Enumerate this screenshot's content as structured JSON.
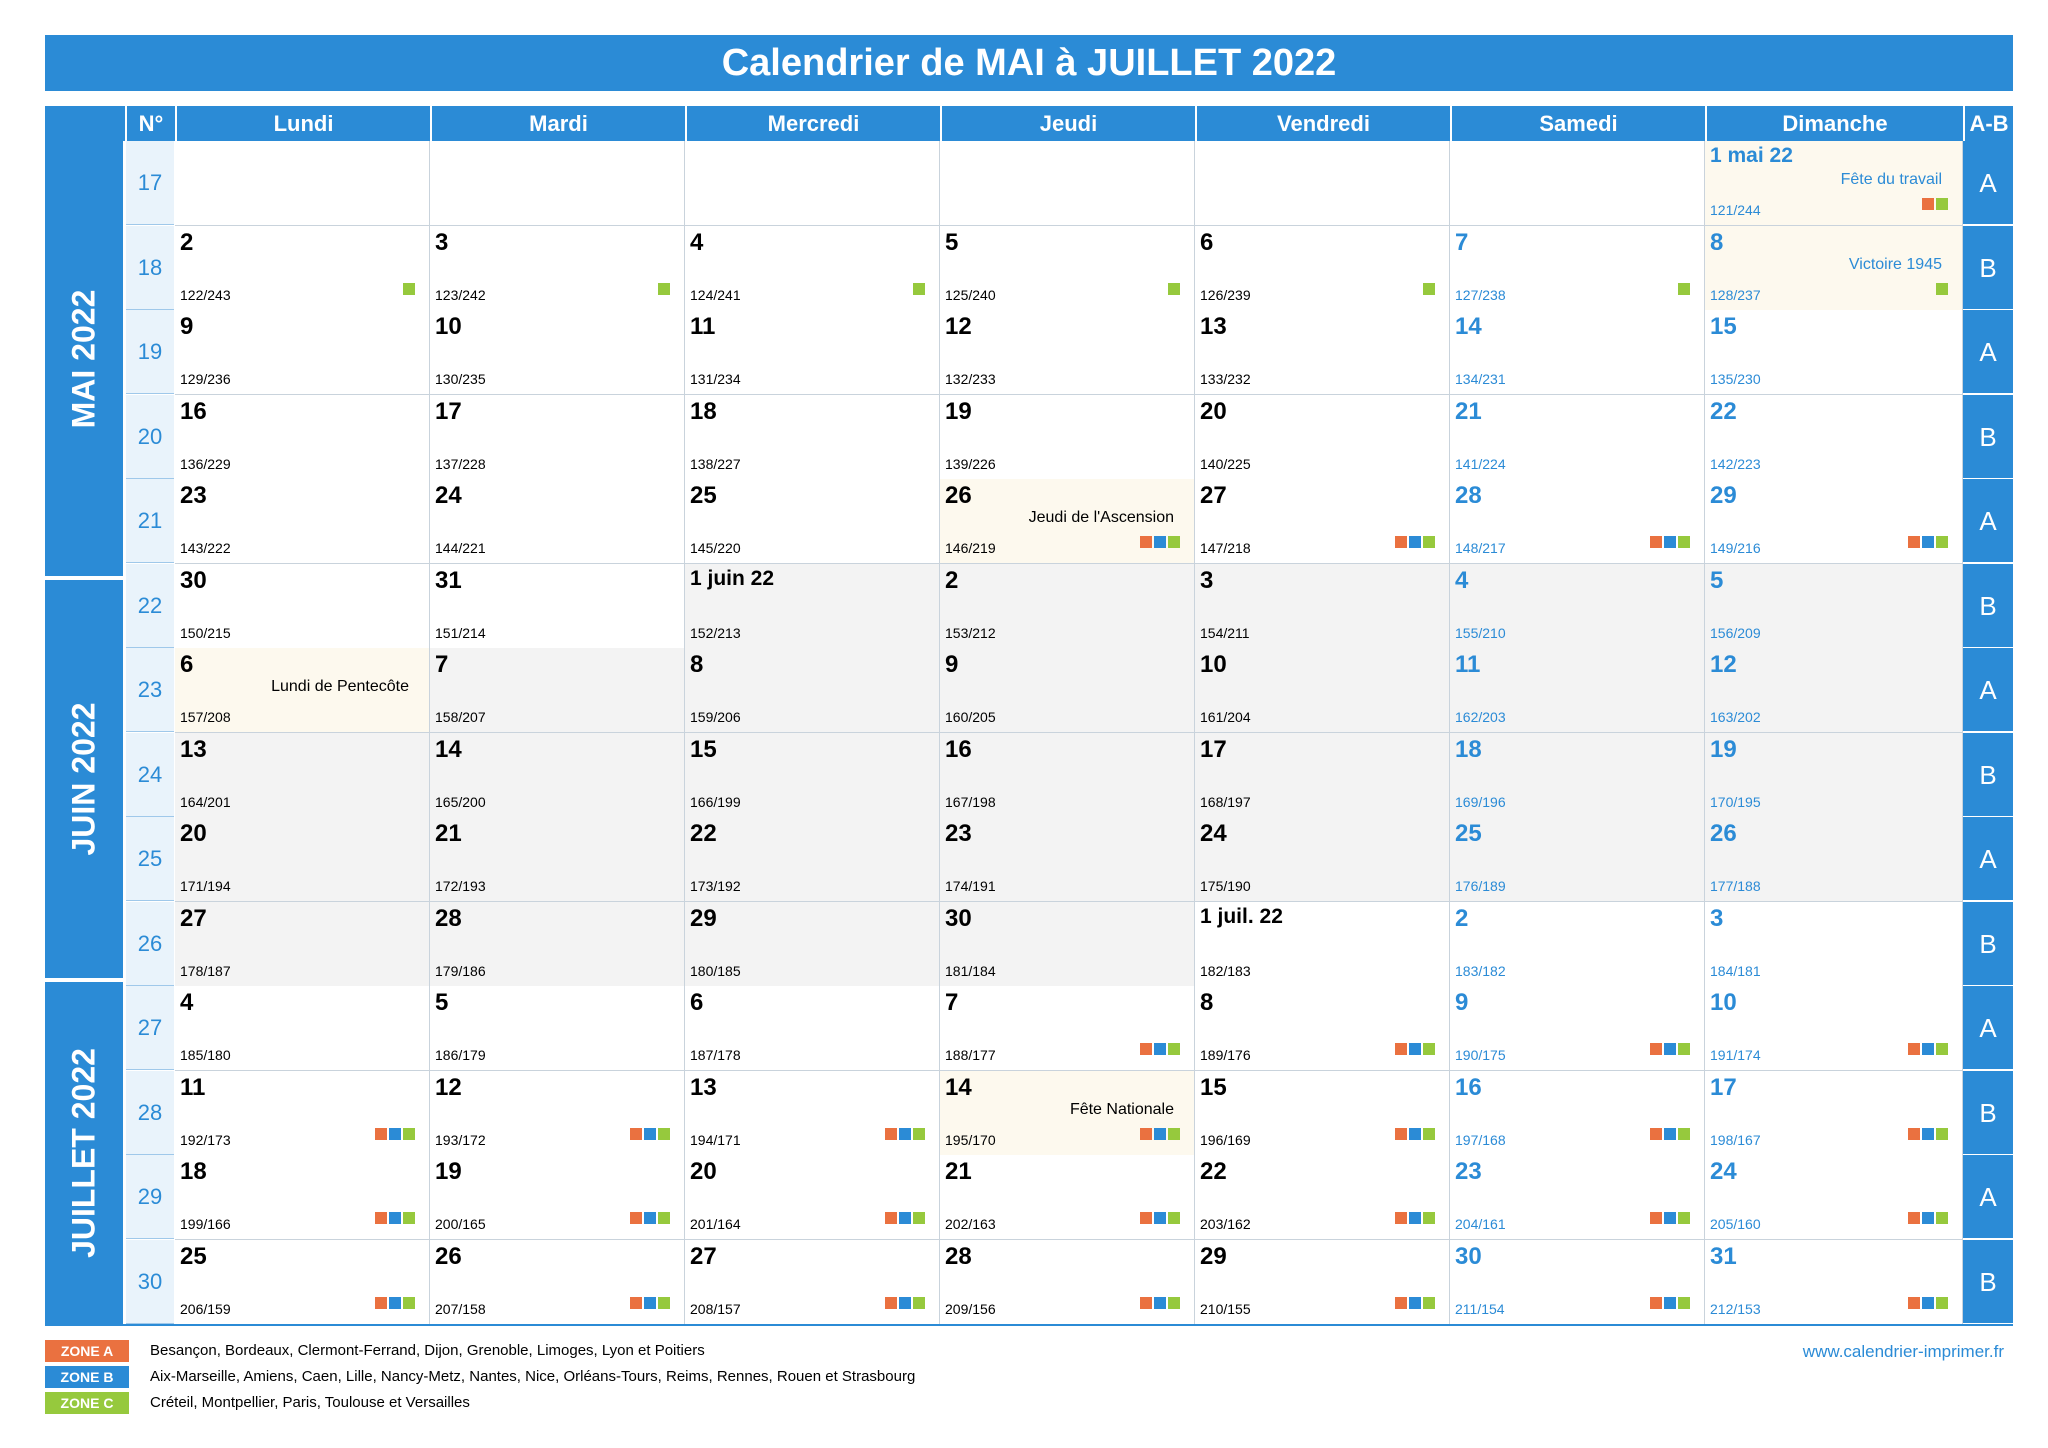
{
  "title": "Calendrier de MAI à JUILLET 2022",
  "header": {
    "week_col": "N°",
    "days": [
      "Lundi",
      "Mardi",
      "Mercredi",
      "Jeudi",
      "Vendredi",
      "Samedi",
      "Dimanche"
    ],
    "ab_col": "A-B"
  },
  "months": [
    {
      "label": "MAI 2022"
    },
    {
      "label": "JUIN 2022"
    },
    {
      "label": "JUILLET 2022"
    }
  ],
  "weeks": [
    {
      "num": "17",
      "ab": "A",
      "days": [
        null,
        null,
        null,
        null,
        null,
        null,
        {
          "num": "1 mai 22",
          "doy": "121/244",
          "holiday": "Fête du travail",
          "zones": [
            "A",
            "C"
          ],
          "bg": "holi"
        }
      ]
    },
    {
      "num": "18",
      "ab": "B",
      "days": [
        {
          "num": "2",
          "doy": "122/243",
          "zones": [
            "C"
          ]
        },
        {
          "num": "3",
          "doy": "123/242",
          "zones": [
            "C"
          ]
        },
        {
          "num": "4",
          "doy": "124/241",
          "zones": [
            "C"
          ]
        },
        {
          "num": "5",
          "doy": "125/240",
          "zones": [
            "C"
          ]
        },
        {
          "num": "6",
          "doy": "126/239",
          "zones": [
            "C"
          ]
        },
        {
          "num": "7",
          "doy": "127/238",
          "zones": [
            "C"
          ]
        },
        {
          "num": "8",
          "doy": "128/237",
          "holiday": "Victoire 1945",
          "zones": [
            "C"
          ],
          "bg": "holi"
        }
      ]
    },
    {
      "num": "19",
      "ab": "A",
      "days": [
        {
          "num": "9",
          "doy": "129/236"
        },
        {
          "num": "10",
          "doy": "130/235"
        },
        {
          "num": "11",
          "doy": "131/234"
        },
        {
          "num": "12",
          "doy": "132/233"
        },
        {
          "num": "13",
          "doy": "133/232"
        },
        {
          "num": "14",
          "doy": "134/231"
        },
        {
          "num": "15",
          "doy": "135/230"
        }
      ]
    },
    {
      "num": "20",
      "ab": "B",
      "days": [
        {
          "num": "16",
          "doy": "136/229"
        },
        {
          "num": "17",
          "doy": "137/228"
        },
        {
          "num": "18",
          "doy": "138/227"
        },
        {
          "num": "19",
          "doy": "139/226"
        },
        {
          "num": "20",
          "doy": "140/225"
        },
        {
          "num": "21",
          "doy": "141/224"
        },
        {
          "num": "22",
          "doy": "142/223"
        }
      ]
    },
    {
      "num": "21",
      "ab": "A",
      "days": [
        {
          "num": "23",
          "doy": "143/222"
        },
        {
          "num": "24",
          "doy": "144/221"
        },
        {
          "num": "25",
          "doy": "145/220"
        },
        {
          "num": "26",
          "doy": "146/219",
          "holiday": "Jeudi de l'Ascension",
          "zones": [
            "A",
            "B",
            "C"
          ],
          "bg": "holi"
        },
        {
          "num": "27",
          "doy": "147/218",
          "zones": [
            "A",
            "B",
            "C"
          ]
        },
        {
          "num": "28",
          "doy": "148/217",
          "zones": [
            "A",
            "B",
            "C"
          ]
        },
        {
          "num": "29",
          "doy": "149/216",
          "zones": [
            "A",
            "B",
            "C"
          ]
        }
      ]
    },
    {
      "num": "22",
      "ab": "B",
      "days": [
        {
          "num": "30",
          "doy": "150/215"
        },
        {
          "num": "31",
          "doy": "151/214"
        },
        {
          "num": "1 juin 22",
          "doy": "152/213",
          "bg": "grey"
        },
        {
          "num": "2",
          "doy": "153/212",
          "bg": "grey"
        },
        {
          "num": "3",
          "doy": "154/211",
          "bg": "grey"
        },
        {
          "num": "4",
          "doy": "155/210",
          "bg": "grey"
        },
        {
          "num": "5",
          "doy": "156/209",
          "bg": "grey"
        }
      ]
    },
    {
      "num": "23",
      "ab": "A",
      "days": [
        {
          "num": "6",
          "doy": "157/208",
          "holiday": "Lundi de Pentecôte",
          "bg": "holi"
        },
        {
          "num": "7",
          "doy": "158/207",
          "bg": "grey"
        },
        {
          "num": "8",
          "doy": "159/206",
          "bg": "grey"
        },
        {
          "num": "9",
          "doy": "160/205",
          "bg": "grey"
        },
        {
          "num": "10",
          "doy": "161/204",
          "bg": "grey"
        },
        {
          "num": "11",
          "doy": "162/203",
          "bg": "grey"
        },
        {
          "num": "12",
          "doy": "163/202",
          "bg": "grey"
        }
      ]
    },
    {
      "num": "24",
      "ab": "B",
      "days": [
        {
          "num": "13",
          "doy": "164/201",
          "bg": "grey"
        },
        {
          "num": "14",
          "doy": "165/200",
          "bg": "grey"
        },
        {
          "num": "15",
          "doy": "166/199",
          "bg": "grey"
        },
        {
          "num": "16",
          "doy": "167/198",
          "bg": "grey"
        },
        {
          "num": "17",
          "doy": "168/197",
          "bg": "grey"
        },
        {
          "num": "18",
          "doy": "169/196",
          "bg": "grey"
        },
        {
          "num": "19",
          "doy": "170/195",
          "bg": "grey"
        }
      ]
    },
    {
      "num": "25",
      "ab": "A",
      "days": [
        {
          "num": "20",
          "doy": "171/194",
          "bg": "grey"
        },
        {
          "num": "21",
          "doy": "172/193",
          "bg": "grey"
        },
        {
          "num": "22",
          "doy": "173/192",
          "bg": "grey"
        },
        {
          "num": "23",
          "doy": "174/191",
          "bg": "grey"
        },
        {
          "num": "24",
          "doy": "175/190",
          "bg": "grey"
        },
        {
          "num": "25",
          "doy": "176/189",
          "bg": "grey"
        },
        {
          "num": "26",
          "doy": "177/188",
          "bg": "grey"
        }
      ]
    },
    {
      "num": "26",
      "ab": "B",
      "days": [
        {
          "num": "27",
          "doy": "178/187",
          "bg": "grey"
        },
        {
          "num": "28",
          "doy": "179/186",
          "bg": "grey"
        },
        {
          "num": "29",
          "doy": "180/185",
          "bg": "grey"
        },
        {
          "num": "30",
          "doy": "181/184",
          "bg": "grey"
        },
        {
          "num": "1 juil. 22",
          "doy": "182/183"
        },
        {
          "num": "2",
          "doy": "183/182"
        },
        {
          "num": "3",
          "doy": "184/181"
        }
      ]
    },
    {
      "num": "27",
      "ab": "A",
      "days": [
        {
          "num": "4",
          "doy": "185/180"
        },
        {
          "num": "5",
          "doy": "186/179"
        },
        {
          "num": "6",
          "doy": "187/178"
        },
        {
          "num": "7",
          "doy": "188/177",
          "zones": [
            "A",
            "B",
            "C"
          ]
        },
        {
          "num": "8",
          "doy": "189/176",
          "zones": [
            "A",
            "B",
            "C"
          ]
        },
        {
          "num": "9",
          "doy": "190/175",
          "zones": [
            "A",
            "B",
            "C"
          ]
        },
        {
          "num": "10",
          "doy": "191/174",
          "zones": [
            "A",
            "B",
            "C"
          ]
        }
      ]
    },
    {
      "num": "28",
      "ab": "B",
      "days": [
        {
          "num": "11",
          "doy": "192/173",
          "zones": [
            "A",
            "B",
            "C"
          ]
        },
        {
          "num": "12",
          "doy": "193/172",
          "zones": [
            "A",
            "B",
            "C"
          ]
        },
        {
          "num": "13",
          "doy": "194/171",
          "zones": [
            "A",
            "B",
            "C"
          ]
        },
        {
          "num": "14",
          "doy": "195/170",
          "holiday": "Fête Nationale",
          "zones": [
            "A",
            "B",
            "C"
          ],
          "bg": "holi"
        },
        {
          "num": "15",
          "doy": "196/169",
          "zones": [
            "A",
            "B",
            "C"
          ]
        },
        {
          "num": "16",
          "doy": "197/168",
          "zones": [
            "A",
            "B",
            "C"
          ]
        },
        {
          "num": "17",
          "doy": "198/167",
          "zones": [
            "A",
            "B",
            "C"
          ]
        }
      ]
    },
    {
      "num": "29",
      "ab": "A",
      "days": [
        {
          "num": "18",
          "doy": "199/166",
          "zones": [
            "A",
            "B",
            "C"
          ]
        },
        {
          "num": "19",
          "doy": "200/165",
          "zones": [
            "A",
            "B",
            "C"
          ]
        },
        {
          "num": "20",
          "doy": "201/164",
          "zones": [
            "A",
            "B",
            "C"
          ]
        },
        {
          "num": "21",
          "doy": "202/163",
          "zones": [
            "A",
            "B",
            "C"
          ]
        },
        {
          "num": "22",
          "doy": "203/162",
          "zones": [
            "A",
            "B",
            "C"
          ]
        },
        {
          "num": "23",
          "doy": "204/161",
          "zones": [
            "A",
            "B",
            "C"
          ]
        },
        {
          "num": "24",
          "doy": "205/160",
          "zones": [
            "A",
            "B",
            "C"
          ]
        }
      ]
    },
    {
      "num": "30",
      "ab": "B",
      "days": [
        {
          "num": "25",
          "doy": "206/159",
          "zones": [
            "A",
            "B",
            "C"
          ]
        },
        {
          "num": "26",
          "doy": "207/158",
          "zones": [
            "A",
            "B",
            "C"
          ]
        },
        {
          "num": "27",
          "doy": "208/157",
          "zones": [
            "A",
            "B",
            "C"
          ]
        },
        {
          "num": "28",
          "doy": "209/156",
          "zones": [
            "A",
            "B",
            "C"
          ]
        },
        {
          "num": "29",
          "doy": "210/155",
          "zones": [
            "A",
            "B",
            "C"
          ]
        },
        {
          "num": "30",
          "doy": "211/154",
          "zones": [
            "A",
            "B",
            "C"
          ]
        },
        {
          "num": "31",
          "doy": "212/153",
          "zones": [
            "A",
            "B",
            "C"
          ]
        }
      ]
    }
  ],
  "legend": [
    {
      "label": "ZONE A",
      "color": "#ea7140",
      "text": "Besançon, Bordeaux, Clermont-Ferrand, Dijon, Grenoble, Limoges, Lyon et Poitiers"
    },
    {
      "label": "ZONE B",
      "color": "#2b8bd6",
      "text": "Aix-Marseille, Amiens, Caen, Lille, Nancy-Metz, Nantes, Nice, Orléans-Tours, Reims, Rennes, Rouen et Strasbourg"
    },
    {
      "label": "ZONE C",
      "color": "#96c93d",
      "text": "Créteil, Montpellier, Paris, Toulouse et Versailles"
    }
  ],
  "website": "www.calendrier-imprimer.fr",
  "colors": {
    "accent": "#2b8bd6",
    "zone_a": "#ea7140",
    "zone_b": "#2b8bd6",
    "zone_c": "#96c93d",
    "holiday_bg": "#fdf9ee",
    "june_bg": "#f3f3f3"
  }
}
